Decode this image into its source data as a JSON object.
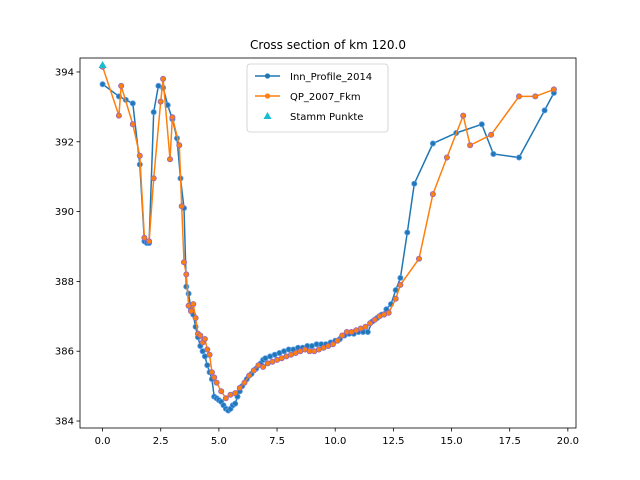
{
  "chart_data": {
    "type": "line",
    "title": "Cross section of km 120.0",
    "xlabel": "",
    "ylabel": "",
    "xlim": [
      -0.97,
      20.35
    ],
    "ylim": [
      383.8,
      394.4
    ],
    "xticks": [
      0.0,
      2.5,
      5.0,
      7.5,
      10.0,
      12.5,
      15.0,
      17.5,
      20.0
    ],
    "xtick_labels": [
      "0.0",
      "2.5",
      "5.0",
      "7.5",
      "10.0",
      "12.5",
      "15.0",
      "17.5",
      "20.0"
    ],
    "yticks": [
      384,
      386,
      388,
      390,
      392,
      394
    ],
    "ytick_labels": [
      "384",
      "386",
      "388",
      "390",
      "392",
      "394"
    ],
    "grid": false,
    "legend_position": "top-center",
    "series": [
      {
        "name": "Inn_Profile_2014",
        "color": "#1f77b4",
        "marker": "circle",
        "x": [
          0.0,
          0.7,
          1.0,
          1.3,
          1.6,
          1.8,
          1.9,
          2.0,
          2.2,
          2.4,
          2.6,
          2.8,
          3.0,
          3.2,
          3.35,
          3.5,
          3.6,
          3.7,
          3.8,
          3.9,
          4.0,
          4.1,
          4.2,
          4.3,
          4.4,
          4.5,
          4.6,
          4.7,
          4.8,
          4.9,
          5.0,
          5.1,
          5.2,
          5.3,
          5.4,
          5.5,
          5.6,
          5.7,
          5.8,
          5.9,
          6.0,
          6.2,
          6.4,
          6.6,
          6.8,
          6.9,
          7.0,
          7.2,
          7.4,
          7.6,
          7.8,
          8.0,
          8.2,
          8.4,
          8.6,
          8.8,
          9.0,
          9.2,
          9.4,
          9.6,
          9.8,
          10.0,
          10.2,
          10.4,
          10.6,
          10.8,
          11.0,
          11.2,
          11.4,
          11.6,
          11.8,
          12.0,
          12.2,
          12.4,
          12.6,
          12.8,
          13.1,
          13.4,
          14.2,
          15.2,
          16.3,
          16.8,
          17.9,
          19.0,
          19.4
        ],
        "y": [
          393.65,
          393.3,
          393.2,
          393.1,
          391.35,
          389.15,
          389.1,
          389.1,
          392.85,
          393.6,
          393.55,
          393.05,
          392.65,
          392.1,
          390.95,
          390.1,
          387.85,
          387.65,
          387.2,
          387.05,
          386.7,
          386.4,
          386.15,
          386.0,
          385.85,
          385.6,
          385.4,
          385.2,
          384.7,
          384.65,
          384.6,
          384.55,
          384.45,
          384.35,
          384.3,
          384.35,
          384.45,
          384.5,
          384.7,
          384.85,
          385.0,
          385.2,
          385.35,
          385.5,
          385.65,
          385.75,
          385.8,
          385.85,
          385.9,
          385.95,
          386.0,
          386.05,
          386.05,
          386.1,
          386.1,
          386.15,
          386.15,
          386.2,
          386.2,
          386.2,
          386.25,
          386.3,
          386.35,
          386.45,
          386.5,
          386.5,
          386.55,
          386.55,
          386.55,
          386.85,
          386.95,
          387.05,
          387.2,
          387.35,
          387.75,
          388.1,
          389.4,
          390.8,
          391.95,
          392.25,
          392.5,
          391.65,
          391.55,
          392.9,
          393.4
        ]
      },
      {
        "name": "QP_2007_Fkm",
        "color": "#ff7f0e",
        "marker": "circle",
        "x": [
          0.0,
          0.7,
          0.8,
          1.3,
          1.6,
          1.8,
          2.0,
          2.2,
          2.5,
          2.6,
          2.9,
          3.0,
          3.3,
          3.4,
          3.5,
          3.6,
          3.7,
          3.8,
          3.9,
          4.0,
          4.1,
          4.2,
          4.3,
          4.4,
          4.5,
          4.6,
          4.7,
          4.8,
          4.9,
          5.1,
          5.3,
          5.5,
          5.7,
          5.9,
          6.1,
          6.3,
          6.5,
          6.7,
          6.9,
          7.1,
          7.3,
          7.5,
          7.7,
          7.9,
          8.1,
          8.3,
          8.5,
          8.7,
          8.9,
          9.1,
          9.3,
          9.5,
          9.7,
          9.9,
          10.1,
          10.3,
          10.5,
          10.7,
          10.9,
          11.1,
          11.3,
          11.5,
          11.7,
          11.9,
          12.1,
          12.3,
          12.6,
          12.8,
          13.6,
          14.2,
          14.8,
          15.5,
          15.8,
          16.7,
          17.9,
          18.6,
          19.4
        ],
        "y": [
          394.15,
          392.75,
          393.6,
          392.5,
          391.6,
          389.25,
          389.15,
          390.95,
          393.15,
          393.8,
          391.5,
          392.7,
          391.9,
          390.15,
          388.55,
          388.2,
          387.3,
          387.15,
          387.35,
          386.95,
          386.5,
          386.45,
          386.25,
          386.35,
          386.05,
          385.9,
          385.4,
          385.25,
          385.1,
          384.85,
          384.65,
          384.75,
          384.8,
          384.95,
          385.1,
          385.3,
          385.45,
          385.6,
          385.55,
          385.65,
          385.7,
          385.75,
          385.8,
          385.85,
          385.9,
          385.95,
          386.0,
          386.05,
          386.0,
          386.0,
          386.05,
          386.1,
          386.15,
          386.2,
          386.3,
          386.45,
          386.55,
          386.55,
          386.6,
          386.65,
          386.7,
          386.8,
          386.9,
          387.0,
          387.05,
          387.1,
          387.5,
          387.9,
          388.65,
          390.5,
          391.55,
          392.75,
          391.9,
          392.2,
          393.3,
          393.3,
          393.5
        ]
      },
      {
        "name": "Stamm Punkte",
        "color": "#17becf",
        "marker": "triangle",
        "x": [
          0.0
        ],
        "y": [
          394.2
        ]
      }
    ]
  }
}
